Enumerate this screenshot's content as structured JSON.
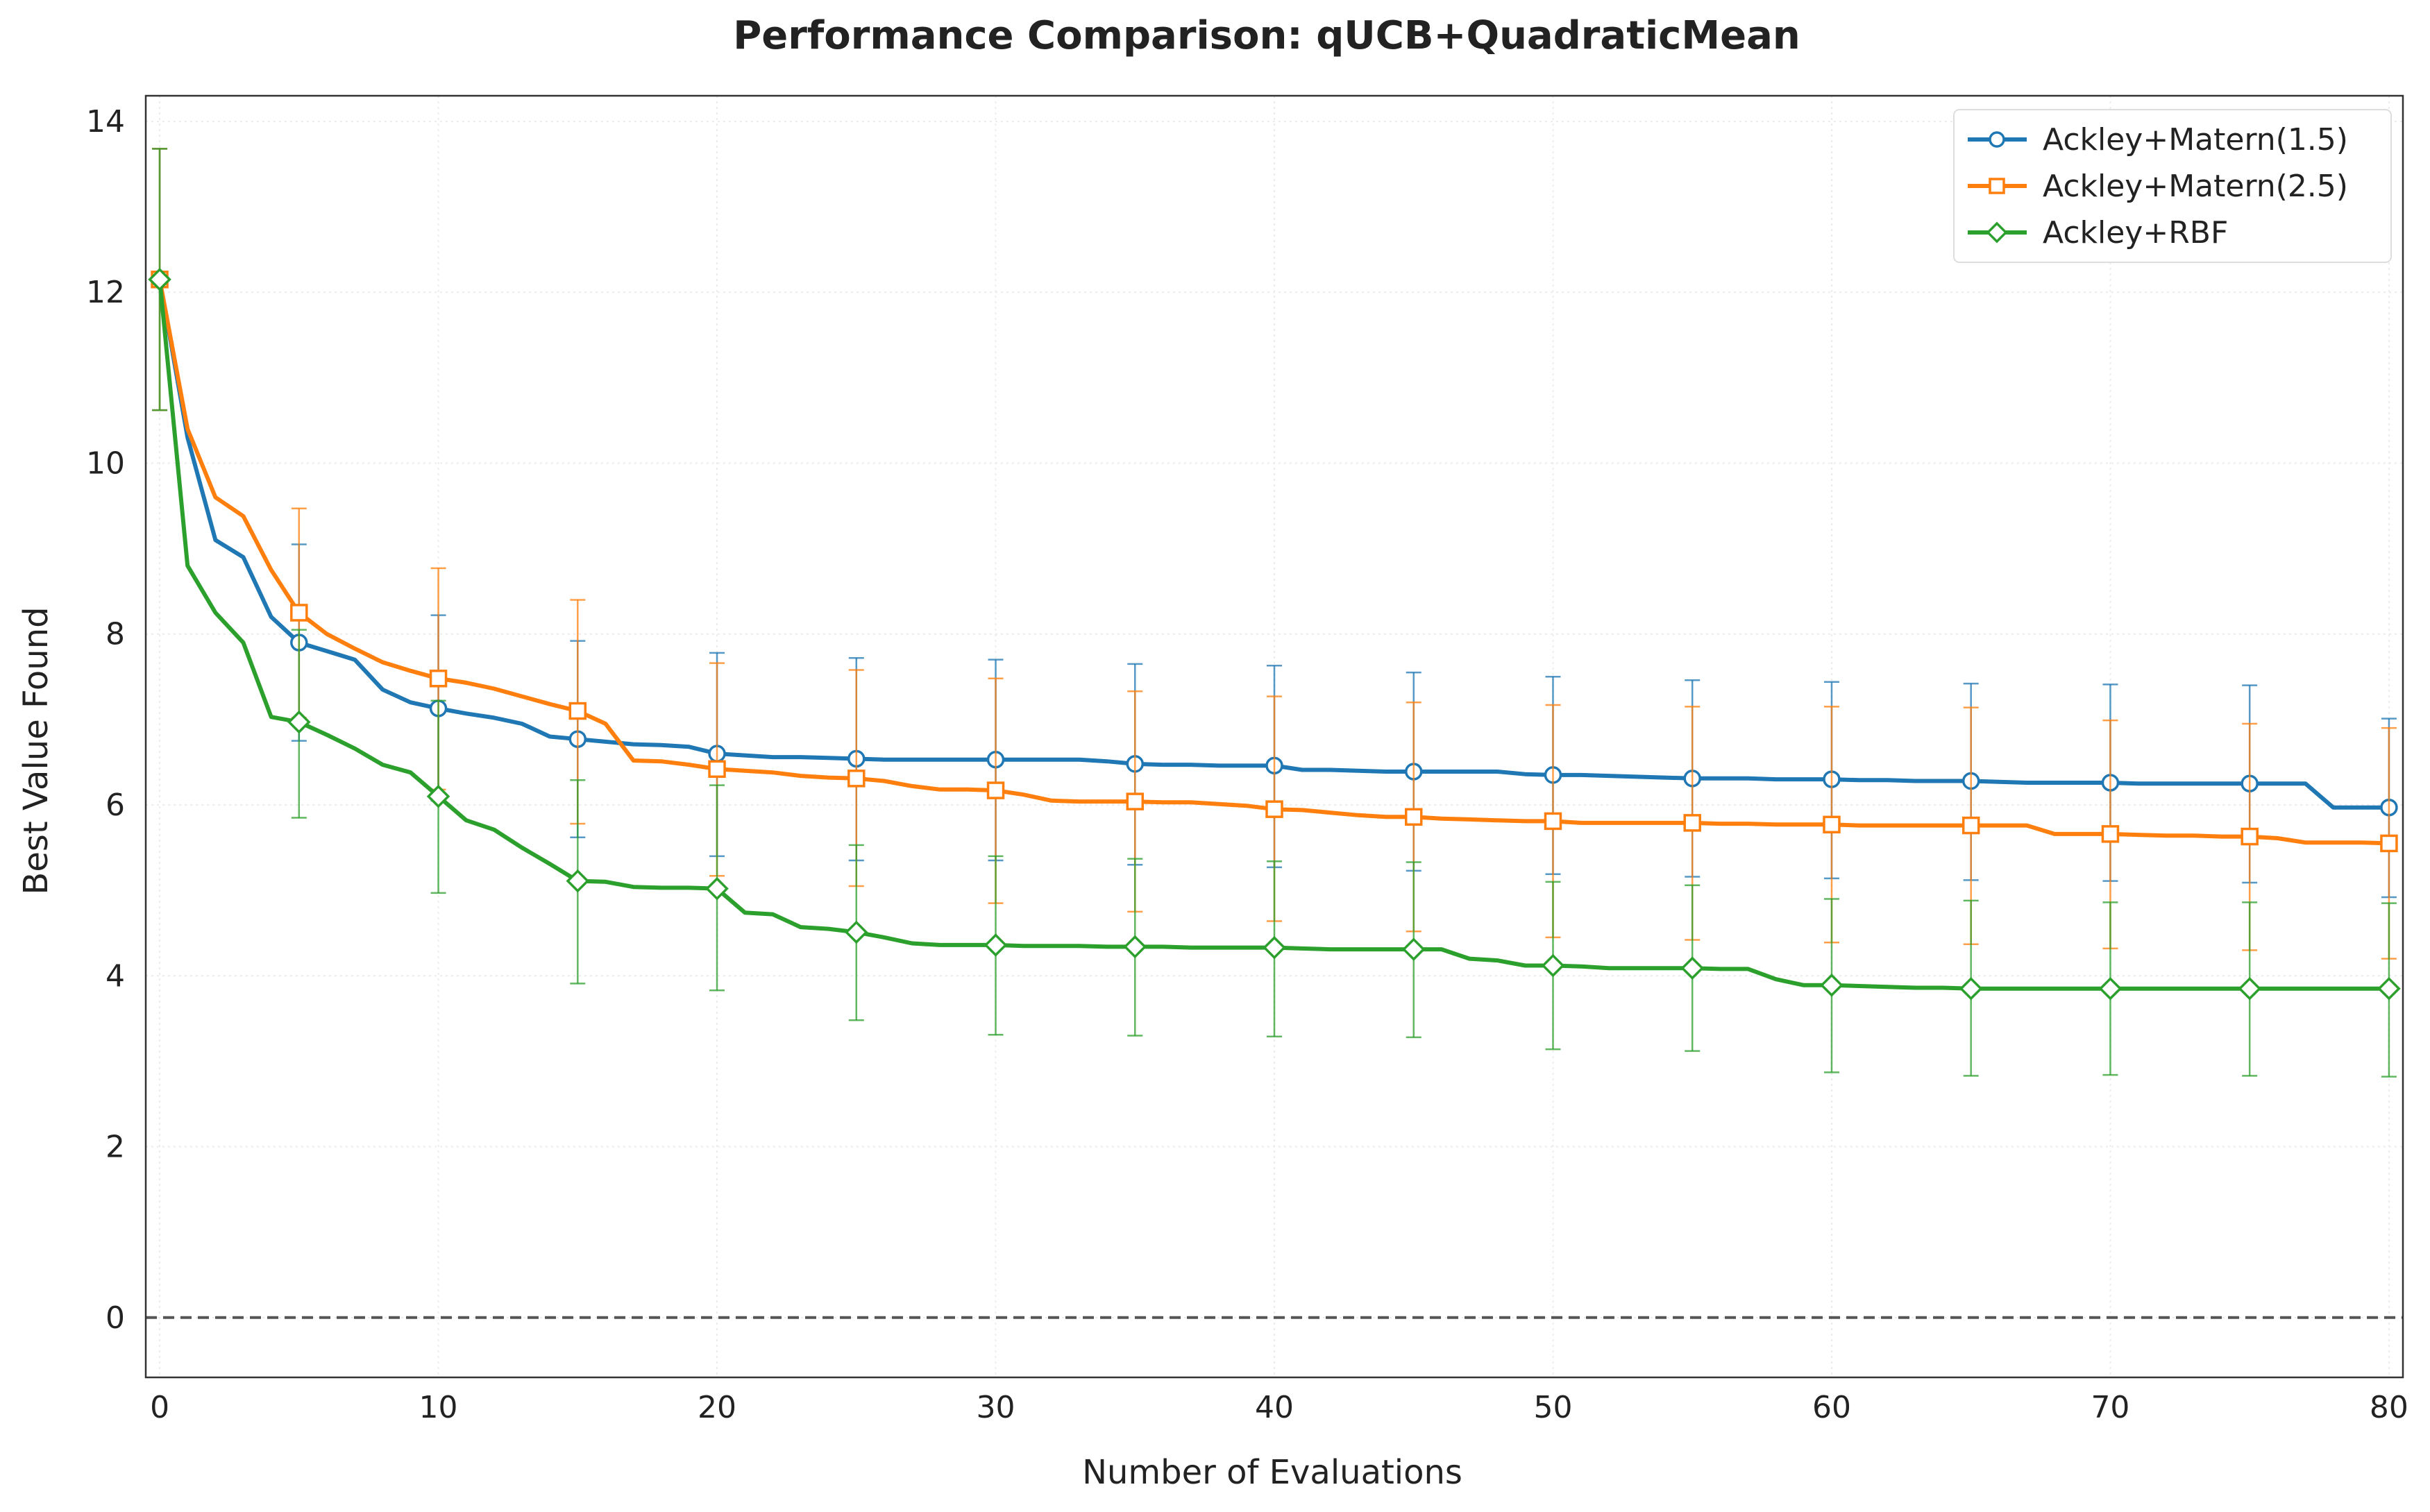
{
  "chart_data": {
    "type": "line",
    "title": "Performance Comparison: qUCB+QuadraticMean",
    "xlabel": "Number of Evaluations",
    "ylabel": "Best Value Found",
    "xlim": [
      -0.5,
      80.5
    ],
    "ylim": [
      -0.7,
      14.3
    ],
    "xticks": [
      0,
      10,
      20,
      30,
      40,
      50,
      60,
      70,
      80
    ],
    "yticks": [
      0,
      2,
      4,
      6,
      8,
      10,
      12,
      14
    ],
    "grid": true,
    "reference_line": {
      "y": 0,
      "style": "dashed",
      "color": "#555555"
    },
    "legend_position": "top-right",
    "series": [
      {
        "name": "Ackley+Matern(1.5)",
        "color": "#1f77b4",
        "marker": "circle",
        "points": [
          [
            0,
            12.15
          ],
          [
            1,
            10.3
          ],
          [
            2,
            9.1
          ],
          [
            3,
            8.9
          ],
          [
            4,
            8.2
          ],
          [
            5,
            7.9
          ],
          [
            6,
            7.8
          ],
          [
            7,
            7.7
          ],
          [
            8,
            7.35
          ],
          [
            9,
            7.2
          ],
          [
            10,
            7.13
          ],
          [
            11,
            7.07
          ],
          [
            12,
            7.02
          ],
          [
            13,
            6.95
          ],
          [
            14,
            6.8
          ],
          [
            15,
            6.77
          ],
          [
            16,
            6.74
          ],
          [
            17,
            6.71
          ],
          [
            18,
            6.7
          ],
          [
            19,
            6.68
          ],
          [
            20,
            6.6
          ],
          [
            21,
            6.58
          ],
          [
            22,
            6.56
          ],
          [
            23,
            6.56
          ],
          [
            24,
            6.55
          ],
          [
            25,
            6.54
          ],
          [
            26,
            6.53
          ],
          [
            27,
            6.53
          ],
          [
            28,
            6.53
          ],
          [
            29,
            6.53
          ],
          [
            30,
            6.53
          ],
          [
            31,
            6.53
          ],
          [
            32,
            6.53
          ],
          [
            33,
            6.53
          ],
          [
            34,
            6.51
          ],
          [
            35,
            6.48
          ],
          [
            36,
            6.47
          ],
          [
            37,
            6.47
          ],
          [
            38,
            6.46
          ],
          [
            39,
            6.46
          ],
          [
            40,
            6.46
          ],
          [
            41,
            6.41
          ],
          [
            42,
            6.41
          ],
          [
            43,
            6.4
          ],
          [
            44,
            6.39
          ],
          [
            45,
            6.39
          ],
          [
            46,
            6.39
          ],
          [
            47,
            6.39
          ],
          [
            48,
            6.39
          ],
          [
            49,
            6.36
          ],
          [
            50,
            6.35
          ],
          [
            51,
            6.35
          ],
          [
            52,
            6.34
          ],
          [
            53,
            6.33
          ],
          [
            54,
            6.32
          ],
          [
            55,
            6.31
          ],
          [
            56,
            6.31
          ],
          [
            57,
            6.31
          ],
          [
            58,
            6.3
          ],
          [
            59,
            6.3
          ],
          [
            60,
            6.3
          ],
          [
            61,
            6.29
          ],
          [
            62,
            6.29
          ],
          [
            63,
            6.28
          ],
          [
            64,
            6.28
          ],
          [
            65,
            6.28
          ],
          [
            66,
            6.27
          ],
          [
            67,
            6.26
          ],
          [
            68,
            6.26
          ],
          [
            69,
            6.26
          ],
          [
            70,
            6.26
          ],
          [
            71,
            6.25
          ],
          [
            72,
            6.25
          ],
          [
            73,
            6.25
          ],
          [
            74,
            6.25
          ],
          [
            75,
            6.25
          ],
          [
            76,
            6.25
          ],
          [
            77,
            6.25
          ],
          [
            78,
            5.97
          ],
          [
            79,
            5.97
          ],
          [
            80,
            5.97
          ]
        ],
        "marker_x": [
          0,
          5,
          10,
          15,
          20,
          25,
          30,
          35,
          40,
          45,
          50,
          55,
          60,
          65,
          70,
          75,
          80
        ],
        "errorbars": [
          [
            0,
            10.62,
            13.68
          ],
          [
            5,
            6.75,
            9.05
          ],
          [
            10,
            6.05,
            8.22
          ],
          [
            15,
            5.62,
            7.92
          ],
          [
            20,
            5.4,
            7.78
          ],
          [
            25,
            5.35,
            7.72
          ],
          [
            30,
            5.35,
            7.7
          ],
          [
            35,
            5.3,
            7.65
          ],
          [
            40,
            5.27,
            7.63
          ],
          [
            45,
            5.23,
            7.55
          ],
          [
            50,
            5.19,
            7.5
          ],
          [
            55,
            5.16,
            7.46
          ],
          [
            60,
            5.14,
            7.44
          ],
          [
            65,
            5.12,
            7.42
          ],
          [
            70,
            5.11,
            7.41
          ],
          [
            75,
            5.09,
            7.4
          ],
          [
            80,
            4.92,
            7.01
          ]
        ]
      },
      {
        "name": "Ackley+Matern(2.5)",
        "color": "#ff7f0e",
        "marker": "square",
        "points": [
          [
            0,
            12.15
          ],
          [
            1,
            10.4
          ],
          [
            2,
            9.6
          ],
          [
            3,
            9.38
          ],
          [
            4,
            8.75
          ],
          [
            5,
            8.25
          ],
          [
            6,
            8.0
          ],
          [
            7,
            7.83
          ],
          [
            8,
            7.67
          ],
          [
            9,
            7.57
          ],
          [
            10,
            7.48
          ],
          [
            11,
            7.43
          ],
          [
            12,
            7.36
          ],
          [
            13,
            7.27
          ],
          [
            14,
            7.18
          ],
          [
            15,
            7.1
          ],
          [
            16,
            6.95
          ],
          [
            17,
            6.52
          ],
          [
            18,
            6.51
          ],
          [
            19,
            6.47
          ],
          [
            20,
            6.42
          ],
          [
            21,
            6.4
          ],
          [
            22,
            6.38
          ],
          [
            23,
            6.34
          ],
          [
            24,
            6.32
          ],
          [
            25,
            6.31
          ],
          [
            26,
            6.28
          ],
          [
            27,
            6.22
          ],
          [
            28,
            6.18
          ],
          [
            29,
            6.18
          ],
          [
            30,
            6.17
          ],
          [
            31,
            6.12
          ],
          [
            32,
            6.05
          ],
          [
            33,
            6.04
          ],
          [
            34,
            6.04
          ],
          [
            35,
            6.04
          ],
          [
            36,
            6.03
          ],
          [
            37,
            6.03
          ],
          [
            38,
            6.01
          ],
          [
            39,
            5.99
          ],
          [
            40,
            5.95
          ],
          [
            41,
            5.94
          ],
          [
            42,
            5.91
          ],
          [
            43,
            5.88
          ],
          [
            44,
            5.86
          ],
          [
            45,
            5.86
          ],
          [
            46,
            5.84
          ],
          [
            47,
            5.83
          ],
          [
            48,
            5.82
          ],
          [
            49,
            5.81
          ],
          [
            50,
            5.81
          ],
          [
            51,
            5.79
          ],
          [
            52,
            5.79
          ],
          [
            53,
            5.79
          ],
          [
            54,
            5.79
          ],
          [
            55,
            5.79
          ],
          [
            56,
            5.78
          ],
          [
            57,
            5.78
          ],
          [
            58,
            5.77
          ],
          [
            59,
            5.77
          ],
          [
            60,
            5.77
          ],
          [
            61,
            5.76
          ],
          [
            62,
            5.76
          ],
          [
            63,
            5.76
          ],
          [
            64,
            5.76
          ],
          [
            65,
            5.76
          ],
          [
            66,
            5.76
          ],
          [
            67,
            5.76
          ],
          [
            68,
            5.66
          ],
          [
            69,
            5.66
          ],
          [
            70,
            5.66
          ],
          [
            71,
            5.65
          ],
          [
            72,
            5.64
          ],
          [
            73,
            5.64
          ],
          [
            74,
            5.63
          ],
          [
            75,
            5.63
          ],
          [
            76,
            5.61
          ],
          [
            77,
            5.56
          ],
          [
            78,
            5.56
          ],
          [
            79,
            5.56
          ],
          [
            80,
            5.55
          ]
        ],
        "marker_x": [
          0,
          5,
          10,
          15,
          20,
          25,
          30,
          35,
          40,
          45,
          50,
          55,
          60,
          65,
          70,
          75,
          80
        ],
        "errorbars": [
          [
            0,
            10.62,
            13.68
          ],
          [
            5,
            7.02,
            9.47
          ],
          [
            10,
            6.18,
            8.77
          ],
          [
            15,
            5.78,
            8.4
          ],
          [
            20,
            5.17,
            7.66
          ],
          [
            25,
            5.05,
            7.58
          ],
          [
            30,
            4.85,
            7.48
          ],
          [
            35,
            4.75,
            7.33
          ],
          [
            40,
            4.64,
            7.27
          ],
          [
            45,
            4.52,
            7.2
          ],
          [
            50,
            4.45,
            7.17
          ],
          [
            55,
            4.42,
            7.15
          ],
          [
            60,
            4.39,
            7.15
          ],
          [
            65,
            4.37,
            7.14
          ],
          [
            70,
            4.32,
            6.99
          ],
          [
            75,
            4.3,
            6.95
          ],
          [
            80,
            4.2,
            6.9
          ]
        ]
      },
      {
        "name": "Ackley+RBF",
        "color": "#2ca02c",
        "marker": "diamond",
        "points": [
          [
            0,
            12.15
          ],
          [
            1,
            8.8
          ],
          [
            2,
            8.25
          ],
          [
            3,
            7.9
          ],
          [
            4,
            7.03
          ],
          [
            5,
            6.97
          ],
          [
            6,
            6.82
          ],
          [
            7,
            6.66
          ],
          [
            8,
            6.47
          ],
          [
            9,
            6.38
          ],
          [
            10,
            6.1
          ],
          [
            11,
            5.82
          ],
          [
            12,
            5.71
          ],
          [
            13,
            5.5
          ],
          [
            14,
            5.31
          ],
          [
            15,
            5.11
          ],
          [
            16,
            5.1
          ],
          [
            17,
            5.04
          ],
          [
            18,
            5.03
          ],
          [
            19,
            5.03
          ],
          [
            20,
            5.02
          ],
          [
            21,
            4.74
          ],
          [
            22,
            4.72
          ],
          [
            23,
            4.57
          ],
          [
            24,
            4.55
          ],
          [
            25,
            4.51
          ],
          [
            26,
            4.45
          ],
          [
            27,
            4.38
          ],
          [
            28,
            4.36
          ],
          [
            29,
            4.36
          ],
          [
            30,
            4.36
          ],
          [
            31,
            4.35
          ],
          [
            32,
            4.35
          ],
          [
            33,
            4.35
          ],
          [
            34,
            4.34
          ],
          [
            35,
            4.34
          ],
          [
            36,
            4.34
          ],
          [
            37,
            4.33
          ],
          [
            38,
            4.33
          ],
          [
            39,
            4.33
          ],
          [
            40,
            4.33
          ],
          [
            41,
            4.32
          ],
          [
            42,
            4.31
          ],
          [
            43,
            4.31
          ],
          [
            44,
            4.31
          ],
          [
            45,
            4.31
          ],
          [
            46,
            4.31
          ],
          [
            47,
            4.2
          ],
          [
            48,
            4.18
          ],
          [
            49,
            4.12
          ],
          [
            50,
            4.12
          ],
          [
            51,
            4.11
          ],
          [
            52,
            4.09
          ],
          [
            53,
            4.09
          ],
          [
            54,
            4.09
          ],
          [
            55,
            4.09
          ],
          [
            56,
            4.08
          ],
          [
            57,
            4.08
          ],
          [
            58,
            3.96
          ],
          [
            59,
            3.89
          ],
          [
            60,
            3.89
          ],
          [
            61,
            3.88
          ],
          [
            62,
            3.87
          ],
          [
            63,
            3.86
          ],
          [
            64,
            3.86
          ],
          [
            65,
            3.85
          ],
          [
            66,
            3.85
          ],
          [
            67,
            3.85
          ],
          [
            68,
            3.85
          ],
          [
            69,
            3.85
          ],
          [
            70,
            3.85
          ],
          [
            71,
            3.85
          ],
          [
            72,
            3.85
          ],
          [
            73,
            3.85
          ],
          [
            74,
            3.85
          ],
          [
            75,
            3.85
          ],
          [
            76,
            3.85
          ],
          [
            77,
            3.85
          ],
          [
            78,
            3.85
          ],
          [
            79,
            3.85
          ],
          [
            80,
            3.85
          ]
        ],
        "marker_x": [
          0,
          5,
          10,
          15,
          20,
          25,
          30,
          35,
          40,
          45,
          50,
          55,
          60,
          65,
          70,
          75,
          80
        ],
        "errorbars": [
          [
            0,
            10.62,
            13.68
          ],
          [
            5,
            5.85,
            8.05
          ],
          [
            10,
            4.97,
            7.22
          ],
          [
            15,
            3.91,
            6.29
          ],
          [
            20,
            3.83,
            6.23
          ],
          [
            25,
            3.48,
            5.53
          ],
          [
            30,
            3.31,
            5.4
          ],
          [
            35,
            3.3,
            5.37
          ],
          [
            40,
            3.29,
            5.34
          ],
          [
            45,
            3.28,
            5.33
          ],
          [
            50,
            3.14,
            5.1
          ],
          [
            55,
            3.12,
            5.06
          ],
          [
            60,
            2.87,
            4.9
          ],
          [
            65,
            2.83,
            4.88
          ],
          [
            70,
            2.84,
            4.86
          ],
          [
            75,
            2.83,
            4.86
          ],
          [
            80,
            2.82,
            4.85
          ]
        ]
      }
    ]
  }
}
